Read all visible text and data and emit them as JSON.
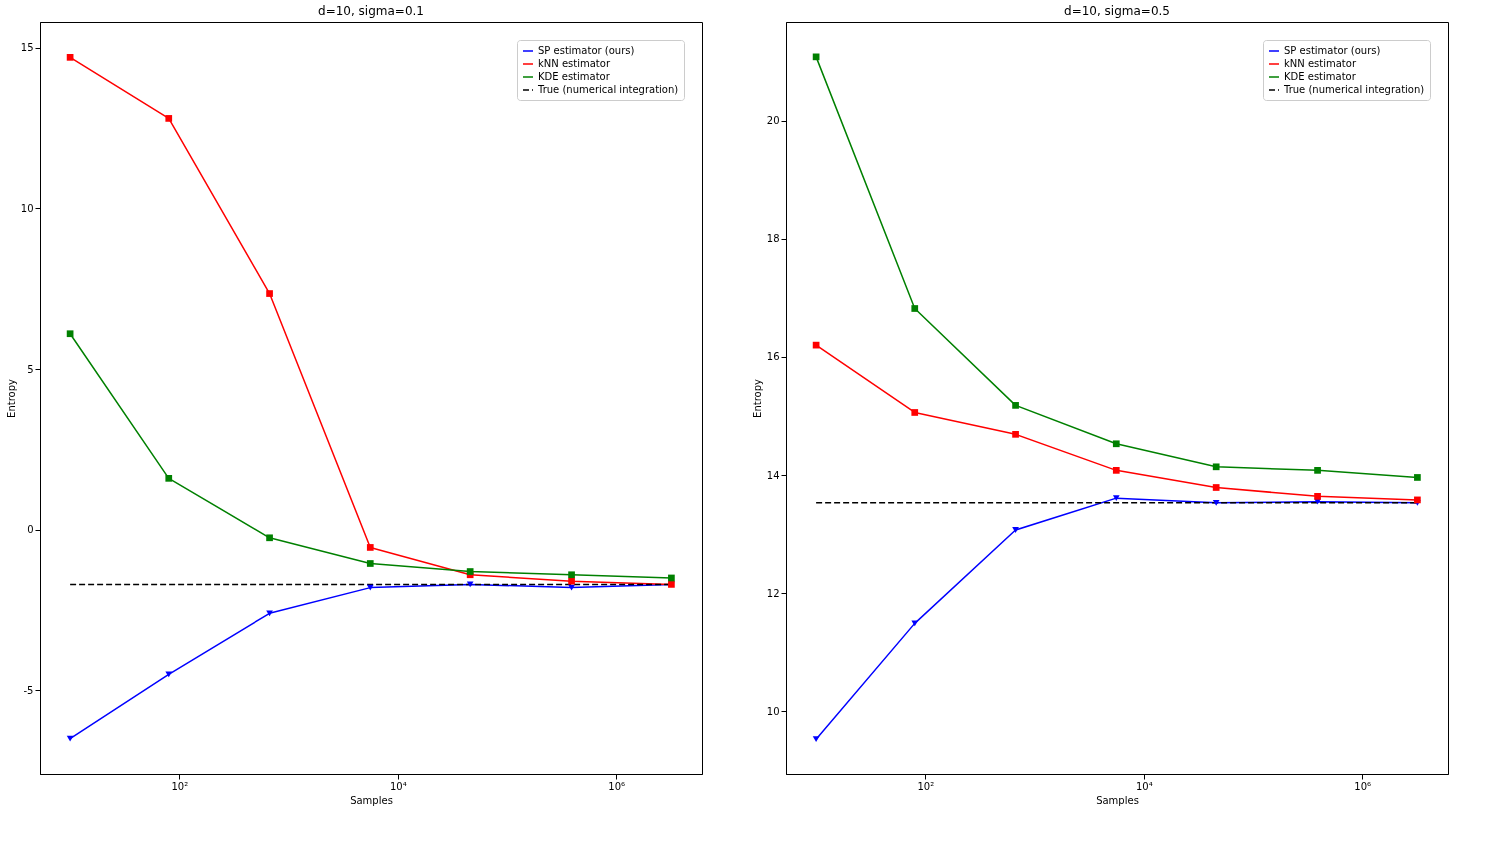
{
  "chart_data": [
    {
      "type": "line",
      "title": "d=10, sigma=0.1",
      "xlabel": "Samples",
      "ylabel": "Entropy",
      "log": "x",
      "x": [
        10,
        80,
        670,
        5600,
        46000,
        390000,
        3200000
      ],
      "xlim": [
        5.3,
        6100000
      ],
      "xticks": [
        {
          "value": 100,
          "label": "10²"
        },
        {
          "value": 10000,
          "label": "10⁴"
        },
        {
          "value": 1000000,
          "label": "10⁶"
        }
      ],
      "ylim": [
        -7.6,
        15.8
      ],
      "yticks": [
        -5,
        0,
        5,
        10,
        15
      ],
      "legend": "top right",
      "grid": false,
      "series": [
        {
          "name": "SP estimator (ours)",
          "color": "#0000ff",
          "marker": "triangle",
          "values": [
            -6.5,
            -4.5,
            -2.6,
            -1.8,
            -1.7,
            -1.8,
            -1.7
          ]
        },
        {
          "name": "kNN estimator",
          "color": "#ff0000",
          "marker": "square",
          "values": [
            14.7,
            12.8,
            7.35,
            -0.55,
            -1.4,
            -1.6,
            -1.7
          ]
        },
        {
          "name": "KDE estimator",
          "color": "#008000",
          "marker": "square",
          "values": [
            6.1,
            1.6,
            -0.25,
            -1.05,
            -1.3,
            -1.4,
            -1.5
          ]
        },
        {
          "name": "True (numerical integration)",
          "color": "#000000",
          "marker": "none",
          "line_style": "dashed",
          "values": [
            -1.7,
            -1.7,
            -1.7,
            -1.7,
            -1.7,
            -1.7,
            -1.7
          ]
        }
      ]
    },
    {
      "type": "line",
      "title": "d=10, sigma=0.5",
      "xlabel": "Samples",
      "ylabel": "Entropy",
      "log": "x",
      "x": [
        10,
        80,
        670,
        5600,
        46000,
        390000,
        3200000
      ],
      "xlim": [
        5.3,
        6100000
      ],
      "xticks": [
        {
          "value": 100,
          "label": "10²"
        },
        {
          "value": 10000,
          "label": "10⁴"
        },
        {
          "value": 1000000,
          "label": "10⁶"
        }
      ],
      "ylim": [
        8.94,
        21.67
      ],
      "yticks": [
        10,
        12,
        14,
        16,
        18,
        20
      ],
      "legend": "top right",
      "grid": false,
      "series": [
        {
          "name": "SP estimator (ours)",
          "color": "#0000ff",
          "marker": "triangle",
          "values": [
            9.53,
            11.49,
            13.07,
            13.61,
            13.53,
            13.55,
            13.53
          ]
        },
        {
          "name": "kNN estimator",
          "color": "#ff0000",
          "marker": "square",
          "values": [
            16.2,
            15.06,
            14.69,
            14.08,
            13.79,
            13.64,
            13.58
          ]
        },
        {
          "name": "KDE estimator",
          "color": "#008000",
          "marker": "square",
          "values": [
            21.08,
            16.82,
            15.18,
            14.53,
            14.14,
            14.08,
            13.96
          ]
        },
        {
          "name": "True (numerical integration)",
          "color": "#000000",
          "marker": "none",
          "line_style": "dashed",
          "values": [
            13.53,
            13.53,
            13.53,
            13.53,
            13.53,
            13.53,
            13.53
          ]
        }
      ]
    }
  ]
}
